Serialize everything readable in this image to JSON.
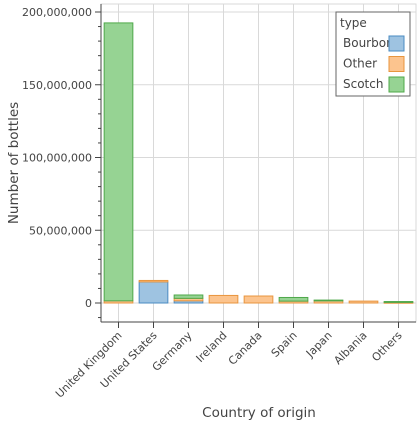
{
  "chart_data": {
    "type": "bar",
    "stacked": true,
    "categories": [
      "United Kingdom",
      "United States",
      "Germany",
      "Ireland",
      "Canada",
      "Spain",
      "Japan",
      "Albania",
      "Others"
    ],
    "series": [
      {
        "name": "Bourbon",
        "color": "#9ec3e1",
        "stroke": "#4a8bc2",
        "values": [
          0,
          14500000,
          1500000,
          0,
          0,
          0,
          0,
          0,
          0
        ]
      },
      {
        "name": "Other",
        "color": "#fcc48e",
        "stroke": "#e8953e",
        "values": [
          1500000,
          1000000,
          1700000,
          5200000,
          4800000,
          1300000,
          1500000,
          1300000,
          400000
        ]
      },
      {
        "name": "Scotch",
        "color": "#96d393",
        "stroke": "#4fa84a",
        "values": [
          191000000,
          0,
          2300000,
          0,
          0,
          2500000,
          500000,
          0,
          600000
        ]
      }
    ],
    "xlabel": "Country of origin",
    "ylabel": "Number of bottles",
    "ylim": [
      -10000000,
      205000000
    ],
    "yticks": [
      0,
      50000000,
      100000000,
      150000000,
      200000000
    ],
    "ytick_labels": [
      "0",
      "50,000,000",
      "100,000,000",
      "150,000,000",
      "200,000,000"
    ],
    "legend_title": "type",
    "legend_position": "top-right",
    "grid": true
  }
}
